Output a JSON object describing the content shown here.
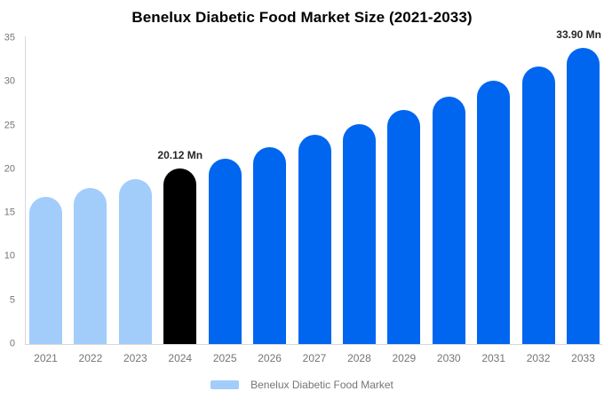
{
  "chart_data": {
    "type": "bar",
    "title": "Benelux Diabetic Food Market Size (2021-2033)",
    "categories": [
      "2021",
      "2022",
      "2023",
      "2024",
      "2025",
      "2026",
      "2027",
      "2028",
      "2029",
      "2030",
      "2031",
      "2032",
      "2033"
    ],
    "values": [
      16.8,
      17.9,
      18.9,
      20.12,
      21.2,
      22.5,
      23.9,
      25.2,
      26.8,
      28.3,
      30.1,
      31.8,
      33.9
    ],
    "bar_colors": [
      "#A2CDFA",
      "#A2CDFA",
      "#A2CDFA",
      "#000000",
      "#0066F0",
      "#0066F0",
      "#0066F0",
      "#0066F0",
      "#0066F0",
      "#0066F0",
      "#0066F0",
      "#0066F0",
      "#0066F0"
    ],
    "data_labels": [
      {
        "category": "2024",
        "text": "20.12 Mn"
      },
      {
        "category": "2033",
        "text": "33.90 Mn"
      }
    ],
    "xlabel": "",
    "ylabel": "",
    "ylim": [
      0,
      35
    ],
    "yticks": [
      0,
      5,
      10,
      15,
      20,
      25,
      30,
      35
    ],
    "grid": false,
    "legend_position": "bottom",
    "legend": [
      {
        "label": "Benelux Diabetic Food Market",
        "color": "#A2CDFA"
      }
    ]
  },
  "colors": {
    "background": "#FFFFFF",
    "axis_text": "#757575",
    "axis_line": "#D8D8D8",
    "data_label_text": "#262626",
    "title_text": "#000000",
    "series_blue": "#0066F0",
    "series_light_blue": "#A2CDFA",
    "series_black": "#000000"
  }
}
